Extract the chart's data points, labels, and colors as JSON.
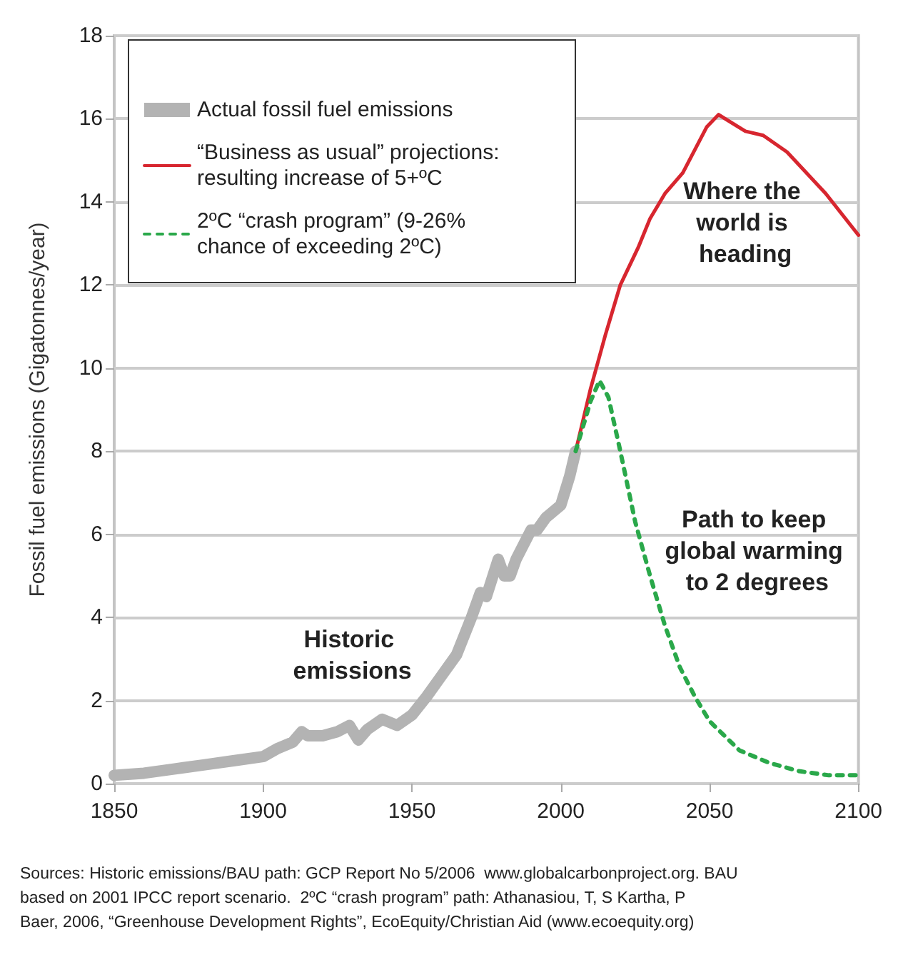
{
  "chart_data": {
    "type": "line",
    "ylabel": "Fossil fuel emissions (Gigatonnes/year)",
    "xlim": [
      1850,
      2100
    ],
    "xticks": [
      1850,
      1900,
      1950,
      2000,
      2050,
      2100
    ],
    "ylim": [
      0,
      18
    ],
    "yticks": [
      0,
      2,
      4,
      6,
      8,
      10,
      12,
      14,
      16,
      18
    ],
    "grid": "y",
    "legend": "top left",
    "marker": "none",
    "series": [
      {
        "name": "Actual fossil fuel emissions",
        "color": "#b3b3b3",
        "line_style": "solid",
        "x": [
          1850,
          1860,
          1870,
          1880,
          1890,
          1900,
          1905,
          1910,
          1913,
          1915,
          1920,
          1925,
          1929,
          1932,
          1935,
          1940,
          1945,
          1950,
          1955,
          1960,
          1965,
          1970,
          1973,
          1975,
          1979,
          1981,
          1983,
          1985,
          1990,
          1992,
          1995,
          2000,
          2003,
          2005
        ],
        "values": [
          0.2,
          0.25,
          0.35,
          0.45,
          0.55,
          0.65,
          0.85,
          1.0,
          1.25,
          1.15,
          1.15,
          1.25,
          1.4,
          1.05,
          1.3,
          1.55,
          1.4,
          1.65,
          2.1,
          2.6,
          3.1,
          4.0,
          4.6,
          4.5,
          5.4,
          5.0,
          5.0,
          5.4,
          6.1,
          6.1,
          6.4,
          6.7,
          7.4,
          8.0
        ]
      },
      {
        "name": "“Business as usual” projections: resulting increase of 5+ºC",
        "color": "#d7262f",
        "line_style": "solid",
        "x": [
          2005,
          2010,
          2015,
          2020,
          2026,
          2030,
          2035,
          2041,
          2049,
          2053,
          2062,
          2068,
          2076,
          2089,
          2100
        ],
        "values": [
          8.0,
          9.5,
          10.8,
          12.0,
          12.9,
          13.6,
          14.2,
          14.7,
          15.8,
          16.1,
          15.7,
          15.6,
          15.2,
          14.2,
          13.2
        ]
      },
      {
        "name": "2ºC “crash program” (9-26% chance of exceeding 2ºC)",
        "color": "#2aa84a",
        "line_style": "dotted",
        "x": [
          2005,
          2010,
          2013,
          2016,
          2020,
          2025,
          2030,
          2035,
          2040,
          2045,
          2050,
          2060,
          2070,
          2080,
          2090,
          2100
        ],
        "values": [
          8.0,
          9.2,
          9.7,
          9.3,
          8.0,
          6.3,
          5.0,
          3.8,
          2.8,
          2.1,
          1.5,
          0.8,
          0.5,
          0.3,
          0.2,
          0.2
        ]
      }
    ],
    "annotations": [
      "Where the world is heading",
      "Path to keep global warming to 2 degrees",
      "Historic emissions",
      "Sources: Historic emissions/BAU path: GCP Report No 5/2006  www.globalcarbonproject.org. BAU based on 2001 IPCC report scenario.  2ºC “crash program” path: Athanasiou, T, S Kartha, P Baer, 2006, “Greenhouse Development Rights”, EcoEquity/Christian Aid (www.ecoequity.org)"
    ]
  }
}
